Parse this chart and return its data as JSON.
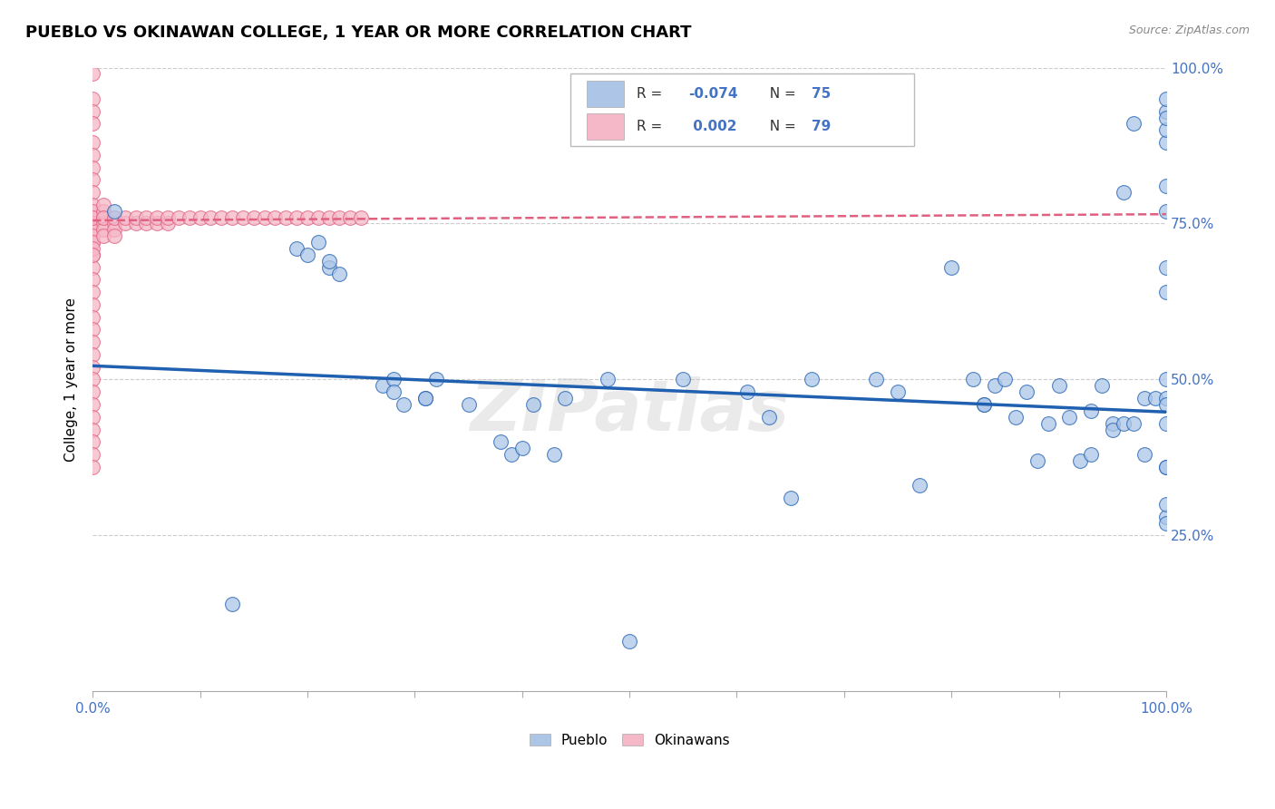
{
  "title": "PUEBLO VS OKINAWAN COLLEGE, 1 YEAR OR MORE CORRELATION CHART",
  "source": "Source: ZipAtlas.com",
  "ylabel": "College, 1 year or more",
  "xlim": [
    0.0,
    1.0
  ],
  "ylim": [
    0.0,
    1.0
  ],
  "blue_R": -0.074,
  "blue_N": 75,
  "pink_R": 0.002,
  "pink_N": 79,
  "blue_color": "#adc6e8",
  "pink_color": "#f5b8c8",
  "blue_line_color": "#2060b0",
  "pink_line_color": "#e06080",
  "grid_color": "#cccccc",
  "watermark": "ZIPatlas",
  "blue_points_x": [
    0.02,
    0.13,
    0.19,
    0.2,
    0.21,
    0.22,
    0.22,
    0.23,
    0.27,
    0.28,
    0.28,
    0.29,
    0.31,
    0.31,
    0.32,
    0.35,
    0.38,
    0.39,
    0.4,
    0.41,
    0.43,
    0.44,
    0.48,
    0.5,
    0.55,
    0.61,
    0.63,
    0.65,
    0.67,
    0.73,
    0.75,
    0.77,
    0.8,
    0.82,
    0.83,
    0.83,
    0.84,
    0.85,
    0.86,
    0.87,
    0.88,
    0.89,
    0.9,
    0.91,
    0.92,
    0.93,
    0.93,
    0.94,
    0.95,
    0.95,
    0.96,
    0.96,
    0.97,
    0.97,
    0.98,
    0.98,
    0.99,
    1.0,
    1.0,
    1.0,
    1.0,
    1.0,
    1.0,
    1.0,
    1.0,
    1.0,
    1.0,
    1.0,
    1.0,
    1.0,
    1.0,
    1.0,
    1.0,
    1.0,
    1.0
  ],
  "blue_points_y": [
    0.77,
    0.14,
    0.71,
    0.7,
    0.72,
    0.68,
    0.69,
    0.67,
    0.49,
    0.5,
    0.48,
    0.46,
    0.47,
    0.47,
    0.5,
    0.46,
    0.4,
    0.38,
    0.39,
    0.46,
    0.38,
    0.47,
    0.5,
    0.08,
    0.5,
    0.48,
    0.44,
    0.31,
    0.5,
    0.5,
    0.48,
    0.33,
    0.68,
    0.5,
    0.46,
    0.46,
    0.49,
    0.5,
    0.44,
    0.48,
    0.37,
    0.43,
    0.49,
    0.44,
    0.37,
    0.38,
    0.45,
    0.49,
    0.43,
    0.42,
    0.43,
    0.8,
    0.91,
    0.43,
    0.47,
    0.38,
    0.47,
    0.36,
    0.28,
    0.3,
    0.27,
    0.47,
    0.5,
    0.46,
    0.64,
    0.68,
    0.77,
    0.81,
    0.88,
    0.9,
    0.93,
    0.92,
    0.36,
    0.43,
    0.95
  ],
  "pink_points_x": [
    0.0,
    0.0,
    0.0,
    0.0,
    0.0,
    0.0,
    0.0,
    0.0,
    0.0,
    0.0,
    0.0,
    0.0,
    0.0,
    0.0,
    0.0,
    0.0,
    0.0,
    0.0,
    0.0,
    0.0,
    0.0,
    0.0,
    0.0,
    0.0,
    0.0,
    0.0,
    0.0,
    0.0,
    0.0,
    0.0,
    0.0,
    0.0,
    0.0,
    0.0,
    0.0,
    0.0,
    0.0,
    0.0,
    0.0,
    0.0,
    0.01,
    0.01,
    0.01,
    0.01,
    0.01,
    0.01,
    0.01,
    0.02,
    0.02,
    0.02,
    0.02,
    0.03,
    0.03,
    0.04,
    0.04,
    0.05,
    0.05,
    0.06,
    0.06,
    0.07,
    0.07,
    0.08,
    0.09,
    0.1,
    0.11,
    0.12,
    0.13,
    0.14,
    0.15,
    0.16,
    0.17,
    0.18,
    0.19,
    0.2,
    0.21,
    0.22,
    0.23,
    0.24,
    0.25
  ],
  "pink_points_y": [
    0.99,
    0.95,
    0.93,
    0.91,
    0.88,
    0.86,
    0.84,
    0.82,
    0.8,
    0.78,
    0.76,
    0.74,
    0.72,
    0.7,
    0.68,
    0.66,
    0.64,
    0.62,
    0.6,
    0.58,
    0.56,
    0.54,
    0.52,
    0.5,
    0.48,
    0.46,
    0.44,
    0.42,
    0.4,
    0.38,
    0.36,
    0.76,
    0.77,
    0.75,
    0.74,
    0.73,
    0.72,
    0.71,
    0.7,
    0.76,
    0.76,
    0.75,
    0.74,
    0.73,
    0.77,
    0.78,
    0.76,
    0.75,
    0.74,
    0.73,
    0.76,
    0.75,
    0.76,
    0.75,
    0.76,
    0.75,
    0.76,
    0.75,
    0.76,
    0.75,
    0.76,
    0.76,
    0.76,
    0.76,
    0.76,
    0.76,
    0.76,
    0.76,
    0.76,
    0.76,
    0.76,
    0.76,
    0.76,
    0.76,
    0.76,
    0.76,
    0.76,
    0.76,
    0.76
  ],
  "blue_trend": [
    0.522,
    0.448
  ],
  "pink_trend_y": 0.76
}
